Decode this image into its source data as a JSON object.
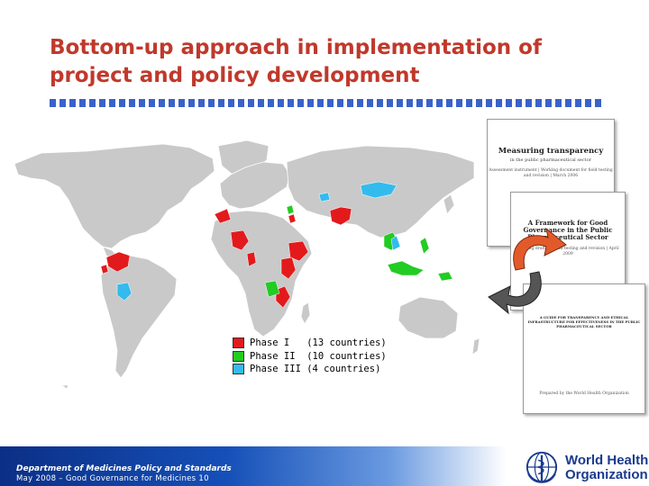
{
  "slide": {
    "title_line1": "Bottom-up approach in implementation of",
    "title_line2": "project and policy development",
    "accent_color": "#c0392b"
  },
  "legend": [
    {
      "label": "Phase I   (13 countries)",
      "color": "#e31a1c"
    },
    {
      "label": "Phase II  (10 countries)",
      "color": "#22cc22"
    },
    {
      "label": "Phase III (4 countries)",
      "color": "#33bbee"
    }
  ],
  "documents": [
    {
      "title": "Measuring transparency",
      "subtitle": "in the public pharmaceutical sector",
      "text": "Assessment instrument | Working document for field testing and revision | March 2006"
    },
    {
      "title": "A Framework for Good Governance in the Public Pharmaceutical Sector",
      "subtitle": "",
      "text": "Working draft for field testing and revision | April 2009"
    },
    {
      "title": "A GUIDE FOR TRANSPARENCY AND ETHICAL INFRASTRUCTURE FOR EFFECTIVENESS IN THE PUBLIC PHARMACEUTICAL SECTOR",
      "subtitle": "",
      "text": "Prepared by the World Health Organization"
    }
  ],
  "footer": {
    "department": "Department of Medicines Policy and Standards",
    "event": "May 2008 – Good Governance for Medicines 10"
  },
  "logo": {
    "line1": "World Health",
    "line2": "Organization",
    "icon": "who-emblem-icon"
  }
}
